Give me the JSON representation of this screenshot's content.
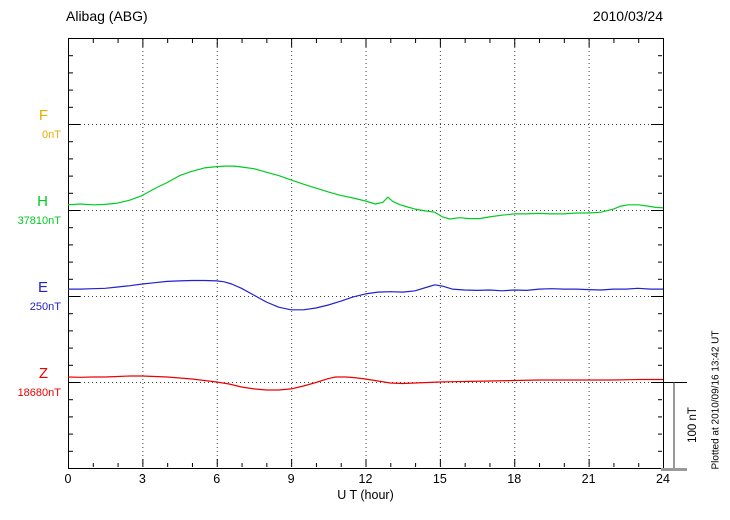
{
  "header": {
    "title": "Alibag (ABG)",
    "date": "2010/03/24"
  },
  "axis": {
    "x_label": "U T (hour)",
    "x_ticks": [
      "0",
      "3",
      "6",
      "9",
      "12",
      "15",
      "18",
      "21",
      "24"
    ]
  },
  "scale_bar": {
    "label": "100 nT"
  },
  "footer_note": "Plotted at 2010/09/16 13:42 UT",
  "colors": {
    "F": "#EEAA00",
    "H": "#00CC22",
    "E": "#2222CC",
    "Z": "#EE0000",
    "grid": "#444444",
    "axis": "#000000"
  },
  "chart_data": {
    "type": "line",
    "title": "Alibag (ABG) magnetogram 2010/03/24",
    "xlabel": "U T (hour)",
    "x_range": [
      0,
      24
    ],
    "x_major_ticks": [
      0,
      3,
      6,
      9,
      12,
      15,
      18,
      21,
      24
    ],
    "x_minor_tick_hours": 1,
    "grid": "dotted, vertical every 3 h, horizontal at each component baseline",
    "scale_bar_nT": 100,
    "series": [
      {
        "name": "F",
        "baseline_label": "0nT",
        "color": "#EEAA00",
        "units": "nT offset from baseline",
        "points": []
      },
      {
        "name": "H",
        "baseline_label": "37810nT",
        "color": "#00CC22",
        "units": "nT offset from baseline",
        "points": [
          [
            0,
            6
          ],
          [
            0.5,
            7
          ],
          [
            1,
            6
          ],
          [
            1.5,
            6.5
          ],
          [
            2,
            8
          ],
          [
            2.5,
            11.5
          ],
          [
            3,
            17
          ],
          [
            3.5,
            25
          ],
          [
            4,
            32
          ],
          [
            4.5,
            40
          ],
          [
            5,
            45
          ],
          [
            5.5,
            49
          ],
          [
            6,
            50.5
          ],
          [
            6.3,
            51
          ],
          [
            6.7,
            51
          ],
          [
            7,
            50
          ],
          [
            7.5,
            48
          ],
          [
            8,
            44
          ],
          [
            8.5,
            40
          ],
          [
            9,
            35
          ],
          [
            9.5,
            30
          ],
          [
            10,
            25.5
          ],
          [
            10.5,
            21
          ],
          [
            11,
            17
          ],
          [
            11.5,
            14
          ],
          [
            12,
            10.5
          ],
          [
            12.4,
            7
          ],
          [
            12.7,
            9
          ],
          [
            12.9,
            15
          ],
          [
            13.1,
            10
          ],
          [
            13.4,
            6
          ],
          [
            13.7,
            3.5
          ],
          [
            14,
            1
          ],
          [
            14.4,
            -1
          ],
          [
            14.8,
            -2.5
          ],
          [
            15.1,
            -8
          ],
          [
            15.4,
            -10.5
          ],
          [
            15.8,
            -9
          ],
          [
            16.2,
            -10
          ],
          [
            16.6,
            -10
          ],
          [
            17,
            -8
          ],
          [
            17.5,
            -6
          ],
          [
            18,
            -4.5
          ],
          [
            18.5,
            -4.5
          ],
          [
            19,
            -4
          ],
          [
            19.5,
            -4.5
          ],
          [
            20,
            -4.5
          ],
          [
            20.5,
            -3.5
          ],
          [
            21,
            -3.5
          ],
          [
            21.5,
            -2.5
          ],
          [
            22,
            1
          ],
          [
            22.3,
            4.5
          ],
          [
            22.6,
            6
          ],
          [
            23,
            6
          ],
          [
            23.4,
            4.5
          ],
          [
            23.7,
            3
          ],
          [
            24,
            2.5
          ]
        ]
      },
      {
        "name": "E",
        "baseline_label": "250nT",
        "color": "#2222CC",
        "units": "nT offset from baseline",
        "points": [
          [
            0,
            8
          ],
          [
            0.5,
            8
          ],
          [
            1,
            8.5
          ],
          [
            1.5,
            9
          ],
          [
            2,
            10.5
          ],
          [
            2.5,
            12
          ],
          [
            3,
            14
          ],
          [
            3.5,
            15.5
          ],
          [
            4,
            17
          ],
          [
            4.5,
            17.5
          ],
          [
            5,
            18
          ],
          [
            5.5,
            18
          ],
          [
            6,
            17.5
          ],
          [
            6.3,
            16.5
          ],
          [
            6.6,
            14
          ],
          [
            7,
            9
          ],
          [
            7.5,
            1
          ],
          [
            8,
            -7
          ],
          [
            8.5,
            -13
          ],
          [
            9,
            -16
          ],
          [
            9.5,
            -16
          ],
          [
            10,
            -14
          ],
          [
            10.5,
            -10.5
          ],
          [
            11,
            -6
          ],
          [
            11.5,
            -1
          ],
          [
            12,
            2.5
          ],
          [
            12.5,
            4.5
          ],
          [
            13,
            5
          ],
          [
            13.5,
            4.5
          ],
          [
            14,
            6
          ],
          [
            14.5,
            10.5
          ],
          [
            14.8,
            13
          ],
          [
            15.1,
            11.5
          ],
          [
            15.5,
            8
          ],
          [
            16,
            7
          ],
          [
            16.5,
            6.5
          ],
          [
            17,
            7
          ],
          [
            17.5,
            6
          ],
          [
            18,
            7
          ],
          [
            18.5,
            6.5
          ],
          [
            19,
            8
          ],
          [
            19.5,
            8.5
          ],
          [
            20,
            8
          ],
          [
            20.5,
            8
          ],
          [
            21,
            7.5
          ],
          [
            21.5,
            7
          ],
          [
            22,
            8
          ],
          [
            22.5,
            8
          ],
          [
            23,
            9
          ],
          [
            23.5,
            8
          ],
          [
            24,
            8
          ]
        ]
      },
      {
        "name": "Z",
        "baseline_label": "18680nT",
        "color": "#EE0000",
        "units": "nT offset from baseline",
        "points": [
          [
            0,
            5.8
          ],
          [
            0.5,
            5.5
          ],
          [
            1,
            5.8
          ],
          [
            1.5,
            5.8
          ],
          [
            2,
            6.4
          ],
          [
            2.5,
            7
          ],
          [
            3,
            7
          ],
          [
            3.5,
            6.4
          ],
          [
            4,
            5.8
          ],
          [
            4.5,
            4.6
          ],
          [
            5,
            3.5
          ],
          [
            5.5,
            1.7
          ],
          [
            6,
            0
          ],
          [
            6.5,
            -2.3
          ],
          [
            7,
            -5.8
          ],
          [
            7.5,
            -8
          ],
          [
            8,
            -9.3
          ],
          [
            8.5,
            -9.3
          ],
          [
            9,
            -8
          ],
          [
            9.5,
            -4.6
          ],
          [
            10,
            -0.6
          ],
          [
            10.5,
            4
          ],
          [
            10.8,
            5.8
          ],
          [
            11.2,
            5.8
          ],
          [
            11.5,
            5.2
          ],
          [
            12,
            3.5
          ],
          [
            12.5,
            1.2
          ],
          [
            13,
            -1.2
          ],
          [
            13.5,
            -1.7
          ],
          [
            14,
            -1.2
          ],
          [
            14.5,
            -0.6
          ],
          [
            15,
            0
          ],
          [
            15.5,
            0.3
          ],
          [
            16,
            0.6
          ],
          [
            17,
            1.2
          ],
          [
            18,
            1.7
          ],
          [
            19,
            2.3
          ],
          [
            20,
            2.3
          ],
          [
            21,
            2.3
          ],
          [
            22,
            2.3
          ],
          [
            23,
            2.9
          ],
          [
            24,
            2.9
          ]
        ]
      }
    ]
  }
}
